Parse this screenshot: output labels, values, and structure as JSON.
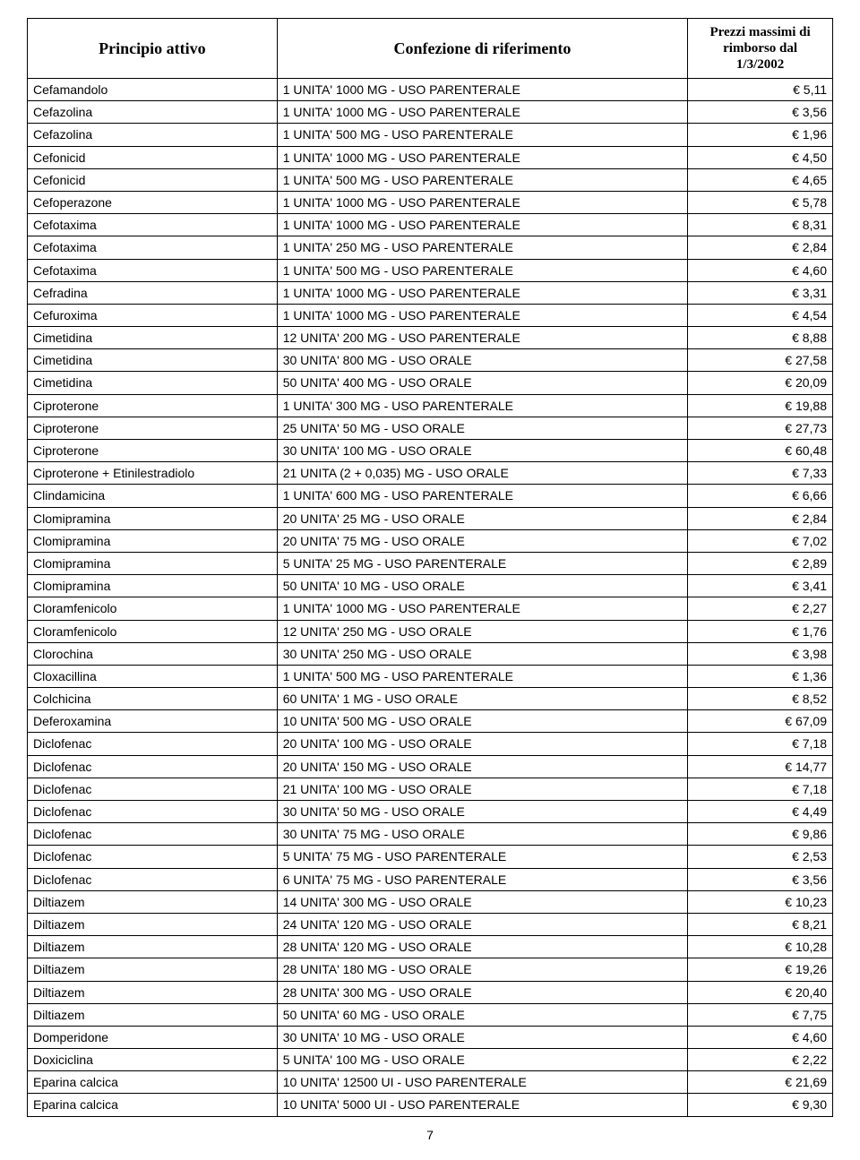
{
  "headers": {
    "principio": "Principio attivo",
    "confezione": "Confezione di riferimento",
    "price_line1": "Prezzi massimi di",
    "price_line2": "rimborso dal",
    "price_line3": "1/3/2002"
  },
  "rows": [
    {
      "p": "Cefamandolo",
      "c": "1 UNITA' 1000 MG - USO PARENTERALE",
      "v": "€ 5,11"
    },
    {
      "p": "Cefazolina",
      "c": "1 UNITA' 1000 MG - USO PARENTERALE",
      "v": "€ 3,56"
    },
    {
      "p": "Cefazolina",
      "c": "1 UNITA' 500 MG - USO PARENTERALE",
      "v": "€ 1,96"
    },
    {
      "p": "Cefonicid",
      "c": "1 UNITA' 1000 MG - USO PARENTERALE",
      "v": "€ 4,50"
    },
    {
      "p": "Cefonicid",
      "c": "1 UNITA' 500 MG - USO PARENTERALE",
      "v": "€ 4,65"
    },
    {
      "p": "Cefoperazone",
      "c": "1 UNITA' 1000 MG - USO PARENTERALE",
      "v": "€ 5,78"
    },
    {
      "p": "Cefotaxima",
      "c": "1 UNITA' 1000 MG - USO PARENTERALE",
      "v": "€ 8,31"
    },
    {
      "p": "Cefotaxima",
      "c": "1 UNITA' 250 MG - USO PARENTERALE",
      "v": "€ 2,84"
    },
    {
      "p": "Cefotaxima",
      "c": "1 UNITA' 500 MG - USO PARENTERALE",
      "v": "€ 4,60"
    },
    {
      "p": "Cefradina",
      "c": "1 UNITA' 1000 MG - USO PARENTERALE",
      "v": "€ 3,31"
    },
    {
      "p": "Cefuroxima",
      "c": "1 UNITA' 1000 MG - USO PARENTERALE",
      "v": "€ 4,54"
    },
    {
      "p": "Cimetidina",
      "c": "12 UNITA' 200 MG - USO PARENTERALE",
      "v": "€ 8,88"
    },
    {
      "p": "Cimetidina",
      "c": "30 UNITA' 800 MG - USO ORALE",
      "v": "€ 27,58"
    },
    {
      "p": "Cimetidina",
      "c": "50 UNITA' 400 MG - USO ORALE",
      "v": "€ 20,09"
    },
    {
      "p": "Ciproterone",
      "c": "1 UNITA' 300 MG - USO PARENTERALE",
      "v": "€ 19,88"
    },
    {
      "p": "Ciproterone",
      "c": "25 UNITA' 50 MG - USO ORALE",
      "v": "€ 27,73"
    },
    {
      "p": "Ciproterone",
      "c": "30 UNITA' 100 MG - USO ORALE",
      "v": "€ 60,48"
    },
    {
      "p": "Ciproterone + Etinilestradiolo",
      "c": "21 UNITA (2 + 0,035) MG - USO ORALE",
      "v": "€ 7,33"
    },
    {
      "p": "Clindamicina",
      "c": "1 UNITA' 600 MG - USO PARENTERALE",
      "v": "€ 6,66"
    },
    {
      "p": "Clomipramina",
      "c": "20 UNITA' 25 MG - USO ORALE",
      "v": "€ 2,84"
    },
    {
      "p": "Clomipramina",
      "c": "20 UNITA' 75 MG - USO ORALE",
      "v": "€ 7,02"
    },
    {
      "p": "Clomipramina",
      "c": "5 UNITA' 25 MG - USO PARENTERALE",
      "v": "€ 2,89"
    },
    {
      "p": "Clomipramina",
      "c": "50 UNITA' 10 MG - USO ORALE",
      "v": "€ 3,41"
    },
    {
      "p": "Cloramfenicolo",
      "c": "1 UNITA' 1000 MG - USO PARENTERALE",
      "v": "€ 2,27"
    },
    {
      "p": "Cloramfenicolo",
      "c": "12 UNITA' 250 MG - USO ORALE",
      "v": "€ 1,76"
    },
    {
      "p": "Clorochina",
      "c": "30 UNITA' 250 MG - USO ORALE",
      "v": "€ 3,98"
    },
    {
      "p": "Cloxacillina",
      "c": "1 UNITA' 500 MG - USO PARENTERALE",
      "v": "€ 1,36"
    },
    {
      "p": "Colchicina",
      "c": "60 UNITA' 1 MG - USO ORALE",
      "v": "€ 8,52"
    },
    {
      "p": "Deferoxamina",
      "c": "10 UNITA' 500 MG - USO ORALE",
      "v": "€ 67,09"
    },
    {
      "p": "Diclofenac",
      "c": "20 UNITA' 100 MG - USO ORALE",
      "v": "€ 7,18"
    },
    {
      "p": "Diclofenac",
      "c": "20 UNITA' 150 MG - USO ORALE",
      "v": "€ 14,77"
    },
    {
      "p": "Diclofenac",
      "c": "21 UNITA' 100 MG - USO ORALE",
      "v": "€ 7,18"
    },
    {
      "p": "Diclofenac",
      "c": "30 UNITA' 50 MG - USO ORALE",
      "v": "€ 4,49"
    },
    {
      "p": "Diclofenac",
      "c": "30 UNITA' 75 MG - USO ORALE",
      "v": "€ 9,86"
    },
    {
      "p": "Diclofenac",
      "c": "5 UNITA' 75 MG - USO PARENTERALE",
      "v": "€ 2,53"
    },
    {
      "p": "Diclofenac",
      "c": "6 UNITA' 75 MG - USO PARENTERALE",
      "v": "€ 3,56"
    },
    {
      "p": "Diltiazem",
      "c": "14 UNITA' 300 MG - USO ORALE",
      "v": "€ 10,23"
    },
    {
      "p": "Diltiazem",
      "c": "24 UNITA' 120 MG - USO ORALE",
      "v": "€ 8,21"
    },
    {
      "p": "Diltiazem",
      "c": "28 UNITA' 120 MG - USO ORALE",
      "v": "€ 10,28"
    },
    {
      "p": "Diltiazem",
      "c": "28 UNITA' 180 MG - USO ORALE",
      "v": "€ 19,26"
    },
    {
      "p": "Diltiazem",
      "c": "28 UNITA' 300 MG - USO ORALE",
      "v": "€ 20,40"
    },
    {
      "p": "Diltiazem",
      "c": "50 UNITA' 60 MG - USO ORALE",
      "v": "€ 7,75"
    },
    {
      "p": "Domperidone",
      "c": "30 UNITA' 10 MG - USO ORALE",
      "v": "€ 4,60"
    },
    {
      "p": "Doxiciclina",
      "c": "5 UNITA' 100 MG - USO ORALE",
      "v": "€ 2,22"
    },
    {
      "p": "Eparina calcica",
      "c": "10 UNITA' 12500 UI - USO PARENTERALE",
      "v": "€ 21,69"
    },
    {
      "p": "Eparina calcica",
      "c": "10 UNITA' 5000 UI - USO PARENTERALE",
      "v": "€ 9,30"
    }
  ],
  "page_number": "7",
  "styling": {
    "border_color": "#000000",
    "background_color": "#ffffff",
    "text_color": "#000000",
    "body_font": "Arial",
    "header_font": "Times New Roman",
    "header_fontsize_pt": 18,
    "body_fontsize_pt": 14,
    "col_widths_pct": [
      31,
      51,
      18
    ]
  }
}
